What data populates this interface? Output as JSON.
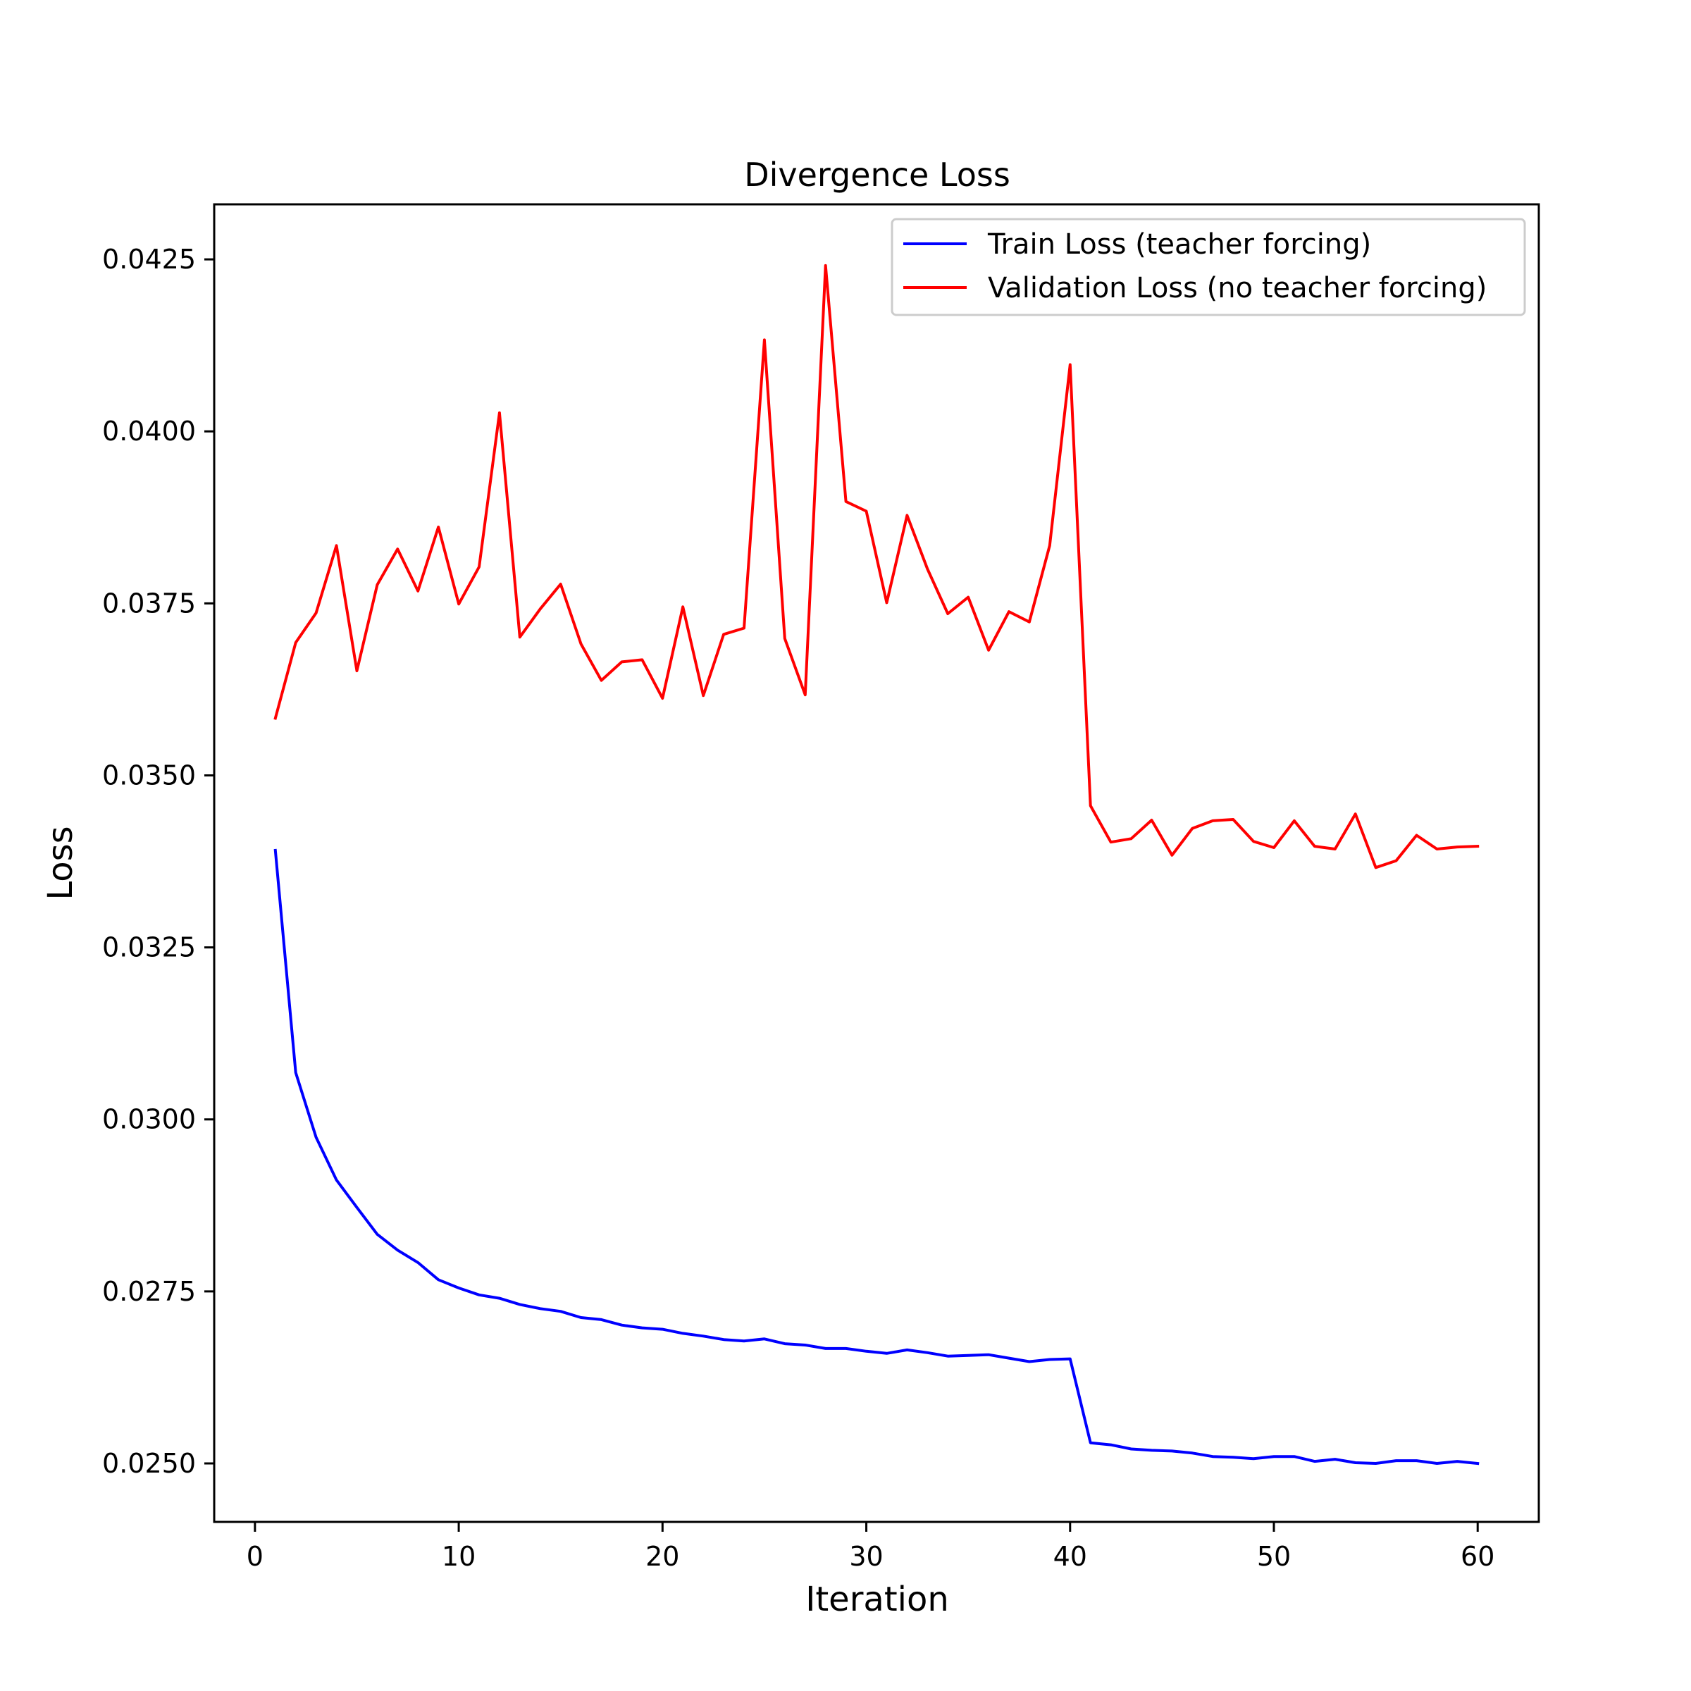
{
  "chart_data": {
    "type": "line",
    "title": "Divergence Loss",
    "xlabel": "Iteration",
    "ylabel": "Loss",
    "xlim": [
      -2,
      63
    ],
    "ylim": [
      0.02415,
      0.0433
    ],
    "xticks": [
      0,
      10,
      20,
      30,
      40,
      50,
      60
    ],
    "xtick_labels": [
      "0",
      "10",
      "20",
      "30",
      "40",
      "50",
      "60"
    ],
    "yticks": [
      0.025,
      0.0275,
      0.03,
      0.0325,
      0.035,
      0.0375,
      0.04,
      0.0425
    ],
    "ytick_labels": [
      "0.0250",
      "0.0275",
      "0.0300",
      "0.0325",
      "0.0350",
      "0.0375",
      "0.0400",
      "0.0425"
    ],
    "grid": false,
    "legend_position": "top-right",
    "x": [
      1,
      2,
      3,
      4,
      5,
      6,
      7,
      8,
      9,
      10,
      11,
      12,
      13,
      14,
      15,
      16,
      17,
      18,
      19,
      20,
      21,
      22,
      23,
      24,
      25,
      26,
      27,
      28,
      29,
      30,
      31,
      32,
      33,
      34,
      35,
      36,
      37,
      38,
      39,
      40,
      41,
      42,
      43,
      44,
      45,
      46,
      47,
      48,
      49,
      50,
      51,
      52,
      53,
      54,
      55,
      56,
      57,
      58,
      59,
      60
    ],
    "series": [
      {
        "name": "Train Loss (teacher forcing)",
        "color": "#0000ff",
        "values": [
          0.03391,
          0.03068,
          0.02974,
          0.02912,
          0.02872,
          0.02833,
          0.0281,
          0.02792,
          0.02767,
          0.02755,
          0.02745,
          0.0274,
          0.02731,
          0.02725,
          0.02721,
          0.02712,
          0.02709,
          0.02701,
          0.02697,
          0.02695,
          0.02689,
          0.02685,
          0.0268,
          0.02678,
          0.02681,
          0.02674,
          0.02672,
          0.02667,
          0.02667,
          0.02663,
          0.0266,
          0.02665,
          0.02661,
          0.02656,
          0.02657,
          0.02658,
          0.02653,
          0.02648,
          0.02651,
          0.02652,
          0.0253,
          0.02527,
          0.02521,
          0.02519,
          0.02518,
          0.02515,
          0.0251,
          0.02509,
          0.02507,
          0.0251,
          0.0251,
          0.02503,
          0.02506,
          0.02501,
          0.025,
          0.02504,
          0.02504,
          0.025,
          0.02503,
          0.025
        ]
      },
      {
        "name": "Validation Loss (no teacher forcing)",
        "color": "#ff0000",
        "values": [
          0.03583,
          0.03693,
          0.03736,
          0.03834,
          0.03652,
          0.03777,
          0.03829,
          0.03768,
          0.03861,
          0.03749,
          0.03803,
          0.04027,
          0.03701,
          0.03742,
          0.03778,
          0.03691,
          0.03638,
          0.03665,
          0.03668,
          0.03612,
          0.03745,
          0.03616,
          0.03705,
          0.03714,
          0.04133,
          0.03699,
          0.03617,
          0.04241,
          0.03898,
          0.03884,
          0.03751,
          0.03878,
          0.038,
          0.03735,
          0.03759,
          0.03682,
          0.03738,
          0.03723,
          0.03834,
          0.04097,
          0.03456,
          0.03403,
          0.03408,
          0.03435,
          0.03384,
          0.03423,
          0.03434,
          0.03436,
          0.03404,
          0.03395,
          0.03434,
          0.03397,
          0.03393,
          0.03444,
          0.03366,
          0.03376,
          0.03413,
          0.03393,
          0.03396,
          0.03397
        ]
      }
    ]
  }
}
